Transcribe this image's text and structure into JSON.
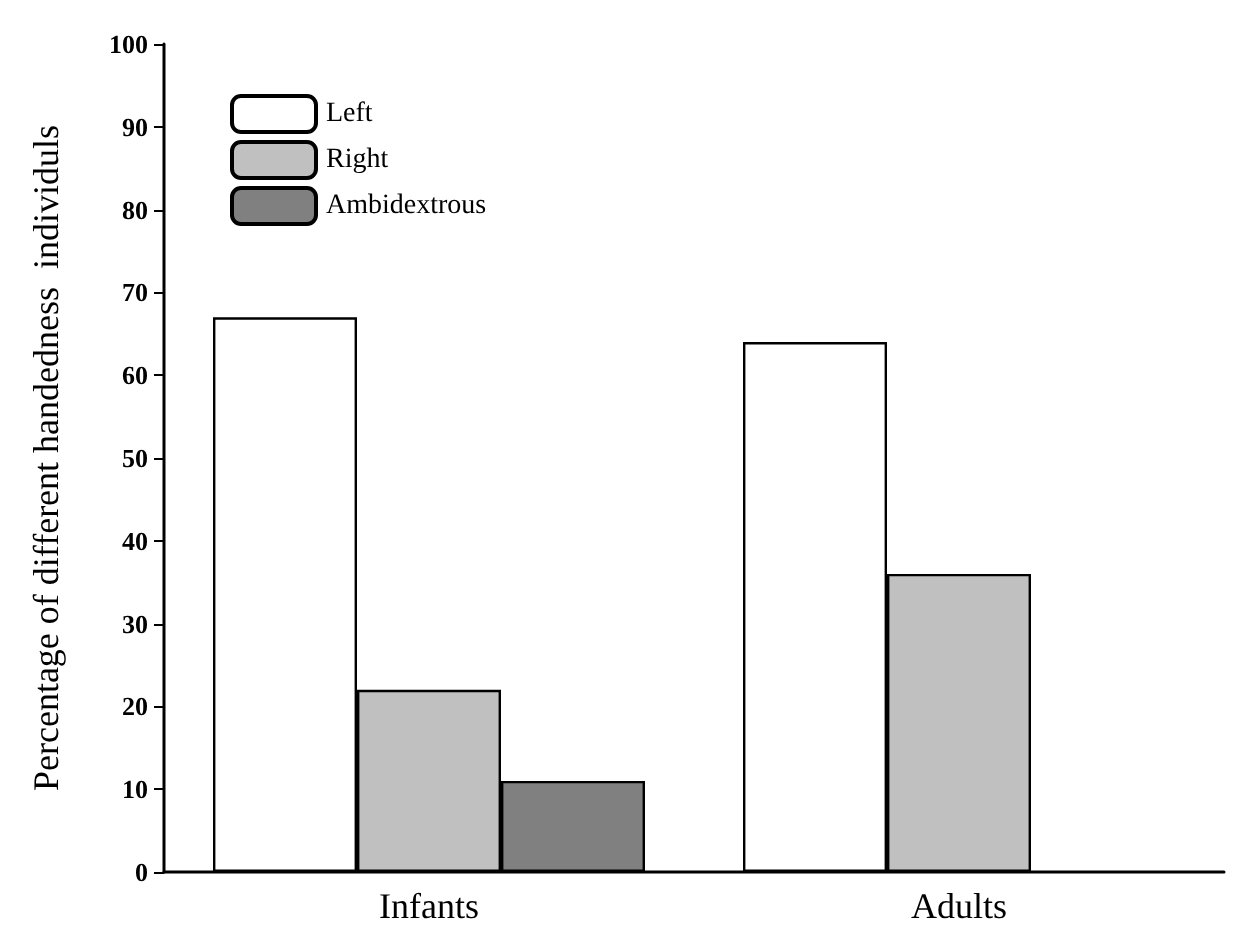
{
  "chart_data": {
    "type": "bar",
    "ylabel": "Percentage of different handedness  individuls",
    "categories": [
      "Infants",
      "Adults"
    ],
    "series": [
      {
        "name": "Left",
        "color": "#ffffff",
        "values": [
          67,
          64
        ]
      },
      {
        "name": "Right",
        "color": "#c0c0c0",
        "values": [
          22,
          36
        ]
      },
      {
        "name": "Ambidextrous",
        "color": "#808080",
        "values": [
          11,
          null
        ]
      }
    ],
    "ylim": [
      0,
      100
    ],
    "yticks": [
      0,
      10,
      20,
      30,
      40,
      50,
      60,
      70,
      80,
      90,
      100
    ],
    "grid": false,
    "legend": "top left"
  }
}
